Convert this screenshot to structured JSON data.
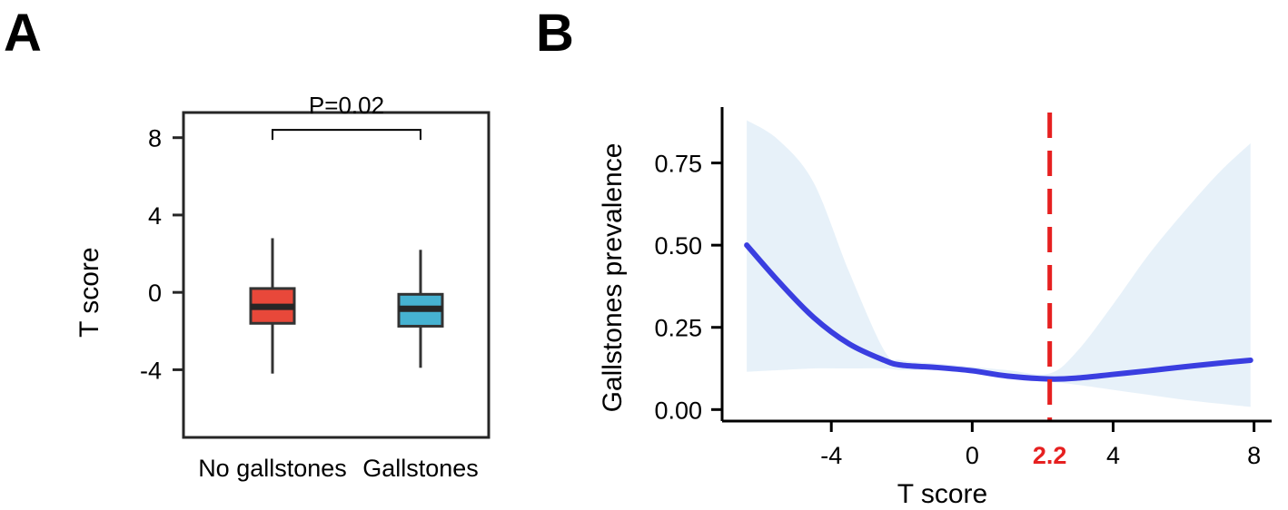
{
  "chart_data": [
    {
      "type": "box",
      "panel": "A",
      "ylabel": "T score",
      "ylim": [
        -7.5,
        9.3
      ],
      "yticks": [
        8,
        4,
        0,
        -4
      ],
      "ytick_labels": [
        "8",
        "4",
        "0",
        "-4"
      ],
      "categories": [
        "No gallstones",
        "Gallstones"
      ],
      "boxes": [
        {
          "name": "No gallstones",
          "whisker_low": -4.2,
          "q1": -1.6,
          "median": -0.75,
          "q3": 0.2,
          "whisker_high": 2.8,
          "color": "#e8483a"
        },
        {
          "name": "Gallstones",
          "whisker_low": -3.9,
          "q1": -1.75,
          "median": -0.85,
          "q3": -0.1,
          "whisker_high": 2.2,
          "color": "#46b2d1"
        }
      ],
      "annotation": {
        "text": "P=0.02",
        "between": [
          "No gallstones",
          "Gallstones"
        ],
        "y_level": 8.4
      }
    },
    {
      "type": "line",
      "panel": "B",
      "xlabel": "T score",
      "ylabel": "Gallstones prevalence",
      "xlim": [
        -7.1,
        8.5
      ],
      "ylim": [
        -0.035,
        0.92
      ],
      "xticks": [
        -4,
        0,
        4,
        8
      ],
      "xtick_labels": [
        "-4",
        "0",
        "4",
        "8"
      ],
      "yticks": [
        0.0,
        0.25,
        0.5,
        0.75
      ],
      "ytick_labels": [
        "0.00",
        "0.25",
        "0.50",
        "0.75"
      ],
      "series": [
        {
          "name": "Gallstones prevalence",
          "color": "#3a3ee0",
          "x": [
            -6.4,
            -5.5,
            -4.5,
            -3.5,
            -2.5,
            -2.0,
            -1.0,
            0.0,
            1.0,
            2.2,
            3.0,
            4.0,
            5.0,
            6.0,
            7.0,
            7.9
          ],
          "y": [
            0.5,
            0.39,
            0.28,
            0.2,
            0.15,
            0.135,
            0.128,
            0.118,
            0.102,
            0.093,
            0.096,
            0.107,
            0.118,
            0.13,
            0.141,
            0.15
          ],
          "ci_lower": [
            0.115,
            0.12,
            0.125,
            0.125,
            0.125,
            0.12,
            0.12,
            0.11,
            0.095,
            0.085,
            0.075,
            0.06,
            0.045,
            0.03,
            0.018,
            0.008
          ],
          "ci_upper": [
            0.88,
            0.82,
            0.69,
            0.42,
            0.18,
            0.15,
            0.14,
            0.13,
            0.12,
            0.11,
            0.18,
            0.32,
            0.47,
            0.6,
            0.72,
            0.81
          ]
        }
      ],
      "threshold": {
        "x": 2.2,
        "label": "2.2",
        "color": "#e62020"
      }
    }
  ],
  "labels": {
    "panel_a": "A",
    "panel_b": "B"
  }
}
